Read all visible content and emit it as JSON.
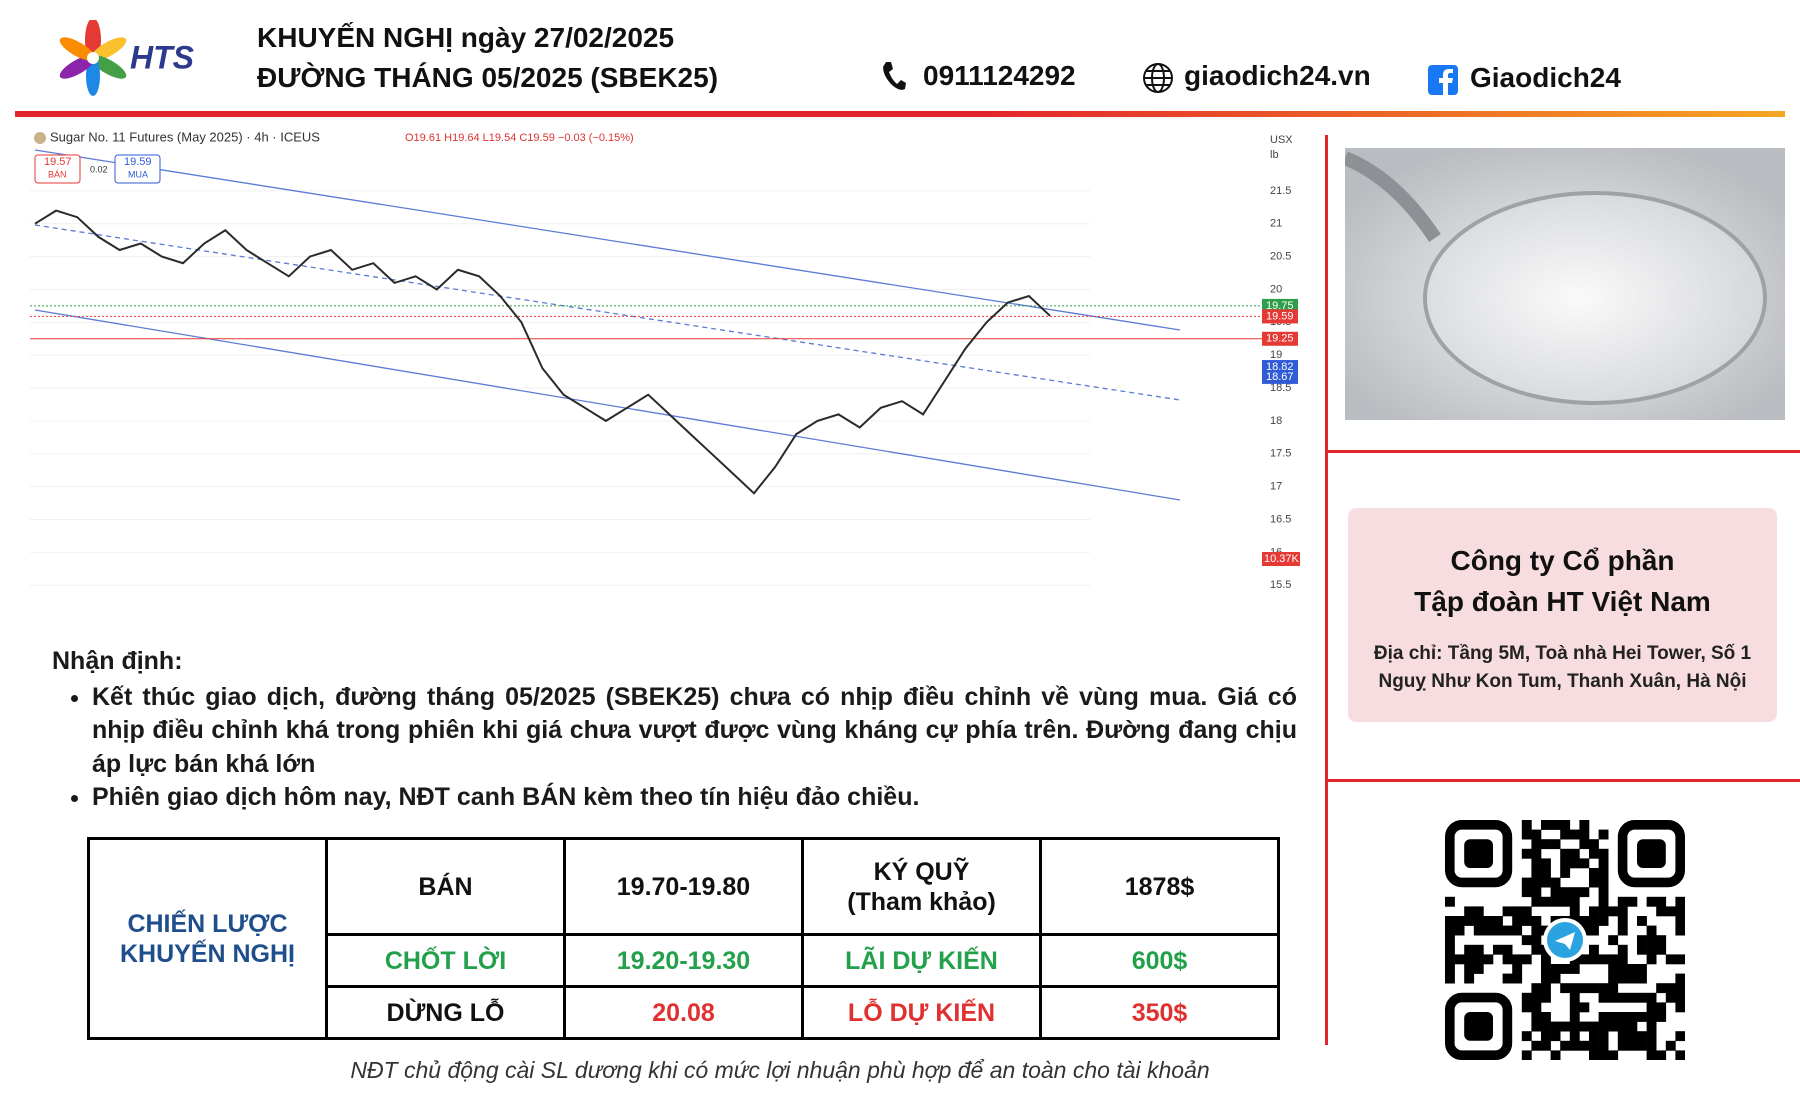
{
  "header": {
    "logo_text": "HTS",
    "title_line1": "KHUYẾN NGHỊ ngày 27/02/2025",
    "title_line2": "ĐƯỜNG THÁNG 05/2025 (SBEK25)",
    "phone": "0911124292",
    "website": "giaodich24.vn",
    "facebook": "Giaodich24"
  },
  "chart": {
    "type": "line",
    "title": "Sugar No. 11 Futures (May 2025) · 4h · ICEUS",
    "ohlc_text": "O19.61 H19.64 L19.54 C19.59 −0.03 (−0.15%)",
    "currency": "USX",
    "unit": "lb",
    "sell_price": 19.57,
    "sell_label": "BÁN",
    "buy_price": 19.59,
    "buy_label": "MUA",
    "spread": 0.02,
    "volume_label": "10.37K",
    "values": [
      21.0,
      21.2,
      21.1,
      20.8,
      20.6,
      20.7,
      20.5,
      20.4,
      20.7,
      20.9,
      20.6,
      20.4,
      20.2,
      20.5,
      20.6,
      20.3,
      20.4,
      20.1,
      20.2,
      20.0,
      20.3,
      20.2,
      19.9,
      19.5,
      18.8,
      18.4,
      18.2,
      18.0,
      18.2,
      18.4,
      18.1,
      17.8,
      17.5,
      17.2,
      16.9,
      17.3,
      17.8,
      18.0,
      18.1,
      17.9,
      18.2,
      18.3,
      18.1,
      18.6,
      19.1,
      19.5,
      19.8,
      19.9,
      19.6
    ],
    "color": "#2a2a2a",
    "ylim": [
      15.2,
      22.35
    ],
    "yticks": [
      15.5,
      16,
      16.5,
      17,
      17.5,
      18,
      18.5,
      19,
      19.5,
      20,
      20.5,
      21,
      21.5
    ],
    "price_tags": [
      {
        "value": 19.75,
        "color": "#2e9e4a"
      },
      {
        "value": 19.59,
        "color": "#e53935"
      },
      {
        "value": 19.25,
        "color": "#e53935"
      },
      {
        "value": 18.82,
        "color": "#2f5bd6"
      },
      {
        "value": 18.67,
        "color": "#2f5bd6"
      }
    ],
    "grid": true
  },
  "analysis": {
    "heading": "Nhận định:",
    "bullets": [
      "Kết thúc giao dịch, đường tháng 05/2025 (SBEK25) chưa có nhịp điều chỉnh về vùng mua. Giá có nhịp điều chỉnh khá trong phiên khi giá chưa vượt được vùng kháng cự phía trên. Đường đang chịu áp lực bán khá lớn",
      "Phiên giao dịch hôm nay, NĐT canh BÁN kèm theo tín hiệu đảo chiều."
    ]
  },
  "table": {
    "strategy_label": "CHIẾN LƯỢC KHUYẾN NGHỊ",
    "rows": [
      [
        "BÁN",
        "19.70-19.80",
        "KÝ QUỸ\n(Tham khảo)",
        "1878$"
      ],
      [
        "CHỐT LỜI",
        "19.20-19.30",
        "LÃI DỰ KIẾN",
        "600$"
      ],
      [
        "DỪNG LỖ",
        "20.08",
        "LỖ DỰ KIẾN",
        "350$"
      ]
    ]
  },
  "footer_note": "NĐT chủ động cài SL dương khi có mức lợi nhuận phù hợp để an toàn cho tài khoản",
  "company": {
    "name_line1": "Công ty Cổ phần",
    "name_line2": "Tập đoàn HT Việt Nam",
    "address": "Địa chỉ: Tầng 5M, Toà nhà Hei Tower, Số 1 Nguỵ Như Kon Tum, Thanh Xuân, Hà Nội"
  }
}
